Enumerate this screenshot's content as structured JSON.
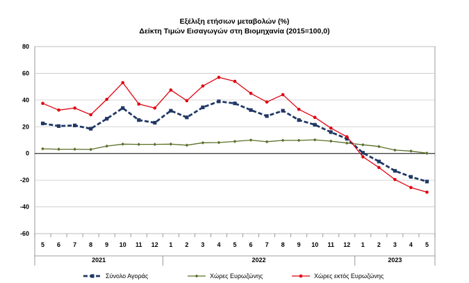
{
  "chart_data": {
    "type": "line",
    "title": "Εξέλιξη ετήσιων μεταβολών (%)",
    "subtitle": "Δείκτη Τιμών Εισαγωγών στη Βιομηχανία (2015=100,0)",
    "ylim": [
      -60,
      80
    ],
    "yticks": [
      -60,
      -40,
      -20,
      0,
      20,
      40,
      60,
      80
    ],
    "grid": true,
    "legend_position": "bottom",
    "categories": [
      "5",
      "6",
      "7",
      "8",
      "9",
      "10",
      "11",
      "12",
      "1",
      "2",
      "3",
      "4",
      "5",
      "6",
      "7",
      "8",
      "9",
      "10",
      "11",
      "12",
      "1",
      "2",
      "3",
      "4",
      "5"
    ],
    "year_groups": [
      {
        "label": "2021",
        "start": 0,
        "end": 7
      },
      {
        "label": "2022",
        "start": 8,
        "end": 19
      },
      {
        "label": "2023",
        "start": 20,
        "end": 24
      }
    ],
    "series": [
      {
        "name": "Σύνολο Αγοράς",
        "color": "#203864",
        "style": "dashed",
        "marker": "square",
        "values": [
          22.5,
          20.5,
          21.0,
          18.5,
          26.0,
          34.0,
          25.0,
          23.0,
          32.0,
          27.0,
          34.5,
          39.0,
          37.5,
          32.5,
          28.0,
          32.0,
          25.0,
          21.5,
          16.0,
          11.0,
          0.5,
          -6.0,
          -13.0,
          -17.5,
          -21.0
        ]
      },
      {
        "name": "Χώρες Ευρωζώνης",
        "color": "#5a6e28",
        "style": "solid",
        "marker": "diamond",
        "values": [
          3.5,
          3.2,
          3.2,
          3.0,
          5.5,
          7.0,
          6.8,
          6.8,
          7.0,
          6.2,
          8.0,
          8.2,
          9.0,
          10.0,
          8.8,
          9.8,
          9.8,
          10.2,
          9.2,
          7.8,
          6.5,
          5.2,
          2.5,
          1.8,
          0.2
        ]
      },
      {
        "name": "Χώρες εκτός Ευρωζώνης",
        "color": "#e0000f",
        "style": "solid",
        "marker": "circle",
        "values": [
          37.5,
          32.5,
          34.0,
          29.0,
          40.5,
          53.0,
          37.0,
          34.0,
          47.5,
          39.5,
          50.5,
          57.0,
          54.0,
          45.0,
          38.5,
          44.0,
          33.0,
          27.0,
          19.0,
          12.5,
          -2.5,
          -10.5,
          -19.5,
          -25.5,
          -29.0
        ]
      }
    ]
  }
}
